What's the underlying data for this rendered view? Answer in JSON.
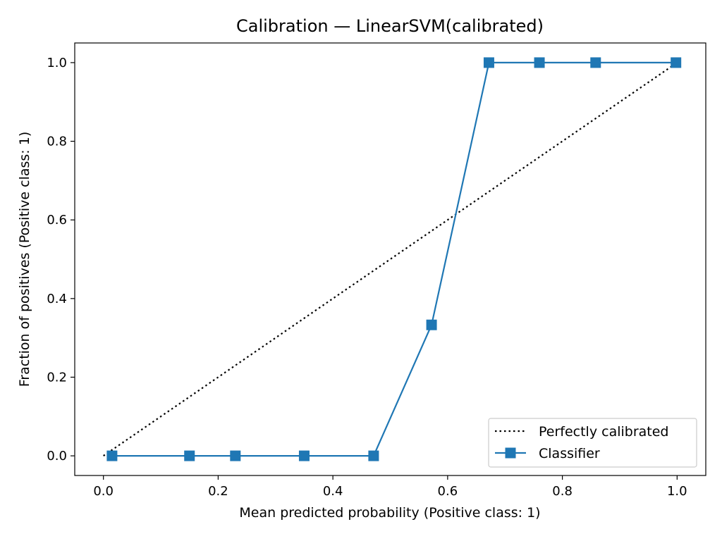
{
  "chart_data": {
    "type": "line",
    "title": "Calibration — LinearSVM(calibrated)",
    "xlabel": "Mean predicted probability (Positive class: 1)",
    "ylabel": "Fraction of positives (Positive class: 1)",
    "xlim": [
      -0.05,
      1.05
    ],
    "ylim": [
      -0.05,
      1.05
    ],
    "xticks": [
      0.0,
      0.2,
      0.4,
      0.6,
      0.8,
      1.0
    ],
    "yticks": [
      0.0,
      0.2,
      0.4,
      0.6,
      0.8,
      1.0
    ],
    "xtick_labels": [
      "0.0",
      "0.2",
      "0.4",
      "0.6",
      "0.8",
      "1.0"
    ],
    "ytick_labels": [
      "0.0",
      "0.2",
      "0.4",
      "0.6",
      "0.8",
      "1.0"
    ],
    "grid": false,
    "legend_position": "lower-right",
    "series": [
      {
        "name": "Perfectly calibrated",
        "style": "dotted",
        "color": "#000000",
        "marker": "none",
        "x": [
          0.0,
          1.0
        ],
        "y": [
          0.0,
          1.0
        ]
      },
      {
        "name": "Classifier",
        "style": "solid",
        "color": "#1f77b4",
        "marker": "square",
        "x": [
          0.015,
          0.15,
          0.23,
          0.35,
          0.471,
          0.572,
          0.672,
          0.76,
          0.858,
          0.998
        ],
        "y": [
          0.0,
          0.0,
          0.0,
          0.0,
          0.0,
          0.333,
          1.0,
          1.0,
          1.0,
          1.0
        ]
      }
    ]
  }
}
